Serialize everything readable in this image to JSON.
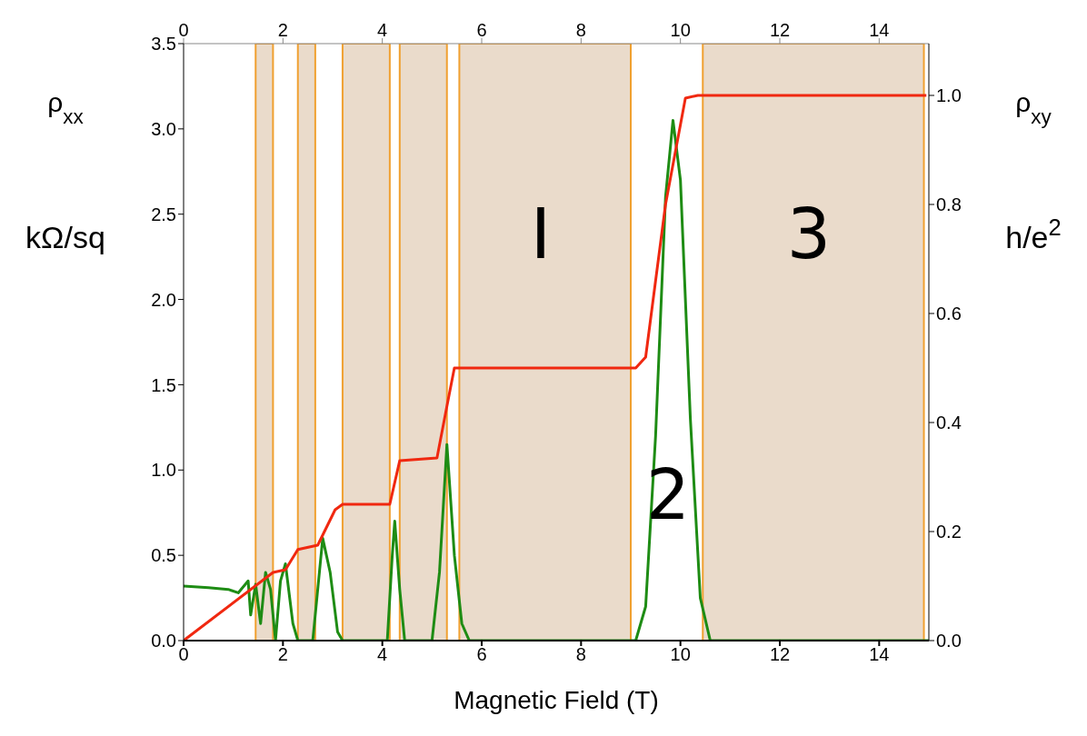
{
  "chart_data": {
    "type": "line",
    "xlabel": "Magnetic Field  (T)",
    "ylabel": "ρ$_{xx}$ kΩ/sq",
    "y2label": "ρ$_{xy}$ h/e$^{2}$",
    "xlim": [
      0,
      15
    ],
    "xticks": [
      0,
      2,
      4,
      6,
      8,
      10,
      12,
      14
    ],
    "x2lim": [
      0,
      15
    ],
    "x2ticks": [
      0,
      2,
      4,
      6,
      8,
      10,
      12,
      14
    ],
    "ylim": [
      0,
      3.5
    ],
    "yticks": [
      {
        "value": 0,
        "label": "0.0"
      },
      {
        "value": 0.5,
        "label": "0.5"
      },
      {
        "value": 1,
        "label": "1.0"
      },
      {
        "value": 1.5,
        "label": "1.5"
      },
      {
        "value": 2,
        "label": "2.0"
      },
      {
        "value": 2.5,
        "label": "2.5"
      },
      {
        "value": 3,
        "label": "3.0"
      },
      {
        "value": 3.5,
        "label": "3.5"
      }
    ],
    "y2lim": [
      0,
      1.095
    ],
    "y2ticks": [
      {
        "value": 0,
        "label": "0.0"
      },
      {
        "value": 0.2,
        "label": "0.2"
      },
      {
        "value": 0.4,
        "label": "0.4"
      },
      {
        "value": 0.6,
        "label": "0.6"
      },
      {
        "value": 0.8,
        "label": "0.8"
      },
      {
        "value": 1,
        "label": "1.0"
      }
    ],
    "grid": false,
    "legend": false,
    "marker": "none",
    "series": [
      {
        "color": "#1e8c14",
        "x": [
          0,
          0.5,
          0.9,
          1.1,
          1.3,
          1.35,
          1.45,
          1.55,
          1.65,
          1.75,
          1.85,
          1.95,
          2.05,
          2.2,
          2.3,
          2.6,
          2.7,
          2.8,
          2.95,
          3.1,
          3.2,
          4.1,
          4.2,
          4.25,
          4.35,
          4.45,
          5.0,
          5.15,
          5.3,
          5.45,
          5.6,
          5.75,
          9.1,
          9.3,
          9.5,
          9.7,
          9.85,
          10.0,
          10.2,
          10.4,
          10.6,
          15
        ],
        "values": [
          0.32,
          0.31,
          0.3,
          0.28,
          0.35,
          0.15,
          0.33,
          0.1,
          0.4,
          0.3,
          0.0,
          0.35,
          0.45,
          0.1,
          0.0,
          0.0,
          0.3,
          0.6,
          0.4,
          0.05,
          0.0,
          0.0,
          0.5,
          0.7,
          0.3,
          0.0,
          0.0,
          0.4,
          1.15,
          0.5,
          0.1,
          0.0,
          0.0,
          0.2,
          1.2,
          2.6,
          3.05,
          2.7,
          1.3,
          0.25,
          0.0,
          0.0
        ]
      },
      {
        "color": "#f02810",
        "axis": "y2",
        "x": [
          0,
          1.8,
          2.05,
          2.3,
          2.7,
          3.05,
          3.2,
          4.15,
          4.35,
          5.1,
          5.3,
          5.45,
          9.1,
          9.3,
          9.7,
          10.1,
          10.35,
          14.95
        ],
        "values": [
          0,
          0.125,
          0.13,
          0.167,
          0.175,
          0.24,
          0.25,
          0.25,
          0.33,
          0.335,
          0.43,
          0.5,
          0.5,
          0.52,
          0.8,
          0.995,
          1.0,
          1.0
        ]
      }
    ],
    "bands": [
      {
        "axis": "x",
        "from": 1.45,
        "to": 1.8,
        "color": "#e3cfb9"
      },
      {
        "axis": "x",
        "from": 2.3,
        "to": 2.65,
        "color": "#e3cfb9"
      },
      {
        "axis": "x",
        "from": 3.2,
        "to": 4.15,
        "color": "#e3cfb9"
      },
      {
        "axis": "x",
        "from": 4.35,
        "to": 5.3,
        "color": "#e3cfb9"
      },
      {
        "axis": "x",
        "from": 5.55,
        "to": 9.0,
        "color": "#e3cfb9"
      },
      {
        "axis": "x",
        "from": 10.45,
        "to": 14.9,
        "color": "#e3cfb9"
      }
    ],
    "annotations": [
      "I",
      "2",
      "3"
    ]
  }
}
